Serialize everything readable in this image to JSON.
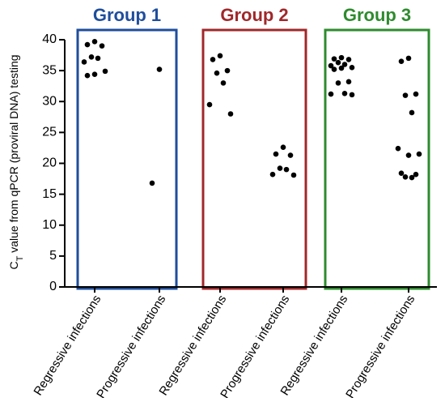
{
  "chart_data": {
    "type": "scatter",
    "ylabel": {
      "base": "C",
      "sub": "T",
      "rest": " value from qPCR (proviral DNA) testing"
    },
    "ylim": [
      0,
      40
    ],
    "yticks": [
      0,
      5,
      10,
      15,
      20,
      25,
      30,
      35,
      40
    ],
    "categories": [
      "Regressive infections",
      "Progressive infections",
      "Regressive infections",
      "Progressive infections",
      "Regressive infections",
      "Progressive infections"
    ],
    "groups": [
      {
        "name": "Group 1",
        "color": "#1f4e9c"
      },
      {
        "name": "Group 2",
        "color": "#a0282b"
      },
      {
        "name": "Group 3",
        "color": "#2e8b2e"
      }
    ],
    "point_color": "#000000",
    "values": [
      [
        39.7,
        39.2,
        39.0,
        37.2,
        37.0,
        36.4,
        34.9,
        34.4,
        34.2
      ],
      [
        35.2,
        16.8
      ],
      [
        37.4,
        36.8,
        35.0,
        34.6,
        33.0,
        29.5,
        28.0
      ],
      [
        22.6,
        21.5,
        21.3,
        19.2,
        19.0,
        18.2,
        18.1
      ],
      [
        37.1,
        36.9,
        36.8,
        36.3,
        36.0,
        35.8,
        35.5,
        35.4,
        35.2,
        33.2,
        33.0,
        31.3,
        31.2,
        31.1
      ],
      [
        37.0,
        36.5,
        31.2,
        31.0,
        28.2,
        22.4,
        21.5,
        21.3,
        18.4,
        18.2,
        17.8,
        17.7
      ]
    ]
  }
}
